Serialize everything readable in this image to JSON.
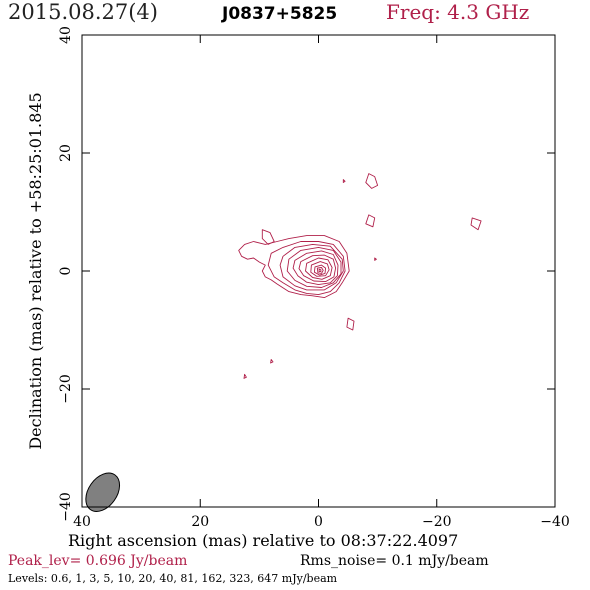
{
  "header": {
    "date": "2015.08.27(4)",
    "source": "J0837+5825",
    "freq": "Freq: 4.3 GHz"
  },
  "footer": {
    "peak": "Peak_lev=  0.696 Jy/beam",
    "rms": "Rms_noise=  0.1 mJy/beam",
    "levels": "Levels: 0.6,    1,    3,    5,   10,   20,   40,   81,  162,  323,  647 mJy/beam"
  },
  "colors": {
    "contour": "#b0204a",
    "beam": "#808080",
    "axis": "#000000"
  },
  "chart_data": {
    "type": "contour",
    "xlabel": "Right ascension (mas) relative to 08:37:22.4097",
    "ylabel": "Declination (mas) relative to +58:25:01.845",
    "xlim": [
      40,
      -40
    ],
    "ylim": [
      -40,
      40
    ],
    "x_ticks": [
      "40",
      "20",
      "0",
      "−20",
      "−40"
    ],
    "y_ticks": [
      "−40",
      "−20",
      "0",
      "20",
      "40"
    ],
    "peak_position": [
      0,
      0
    ],
    "levels_mjy": [
      0.6,
      1,
      3,
      5,
      10,
      20,
      40,
      81,
      162,
      323,
      647
    ],
    "beam": {
      "center": [
        36.5,
        -37.5
      ],
      "major_mas": 3.6,
      "minor_mas": 2.4,
      "pa_deg": 35
    },
    "contours": [
      {
        "level": 0.6,
        "points": [
          [
            13.5,
            3.5
          ],
          [
            12.5,
            4.5
          ],
          [
            11,
            5
          ],
          [
            9,
            4.5
          ],
          [
            7,
            5
          ],
          [
            5,
            5.5
          ],
          [
            2,
            6
          ],
          [
            -1,
            6
          ],
          [
            -3.5,
            5
          ],
          [
            -4.8,
            3
          ],
          [
            -5.2,
            0
          ],
          [
            -4,
            -2
          ],
          [
            -3,
            -3.5
          ],
          [
            -1,
            -4.5
          ],
          [
            1,
            -4.2
          ],
          [
            3,
            -4
          ],
          [
            5,
            -3.5
          ],
          [
            7,
            -2.2
          ],
          [
            8,
            -1.5
          ],
          [
            9,
            -1
          ],
          [
            9.5,
            0
          ],
          [
            9,
            1
          ],
          [
            10,
            1.5
          ],
          [
            11,
            2.2
          ],
          [
            12,
            2
          ],
          [
            13,
            2.5
          ]
        ]
      },
      {
        "level": 1,
        "points": [
          [
            8,
            3
          ],
          [
            6,
            4
          ],
          [
            3,
            5
          ],
          [
            0,
            5
          ],
          [
            -2.5,
            4.5
          ],
          [
            -4.2,
            2.5
          ],
          [
            -4.5,
            0
          ],
          [
            -3.5,
            -2
          ],
          [
            -2,
            -3.5
          ],
          [
            0,
            -4
          ],
          [
            2,
            -3.8
          ],
          [
            4,
            -3.2
          ],
          [
            6,
            -2
          ],
          [
            7.5,
            -1
          ],
          [
            8.5,
            1
          ]
        ]
      },
      {
        "level": 3,
        "points": [
          [
            6,
            2.5
          ],
          [
            4,
            4
          ],
          [
            1,
            4.5
          ],
          [
            -2,
            4.2
          ],
          [
            -4,
            2
          ],
          [
            -4.2,
            0
          ],
          [
            -3,
            -2
          ],
          [
            -1,
            -3.2
          ],
          [
            2,
            -3.2
          ],
          [
            4,
            -2.5
          ],
          [
            6,
            -1
          ],
          [
            6.5,
            1
          ]
        ]
      },
      {
        "level": 5,
        "points": [
          [
            5,
            2
          ],
          [
            3,
            3.5
          ],
          [
            0,
            4
          ],
          [
            -2.5,
            3.5
          ],
          [
            -3.8,
            1.5
          ],
          [
            -3.8,
            -0.5
          ],
          [
            -2.5,
            -2
          ],
          [
            -0.5,
            -2.8
          ],
          [
            2,
            -2.6
          ],
          [
            4,
            -1.6
          ],
          [
            5.3,
            0
          ]
        ]
      },
      {
        "level": 10,
        "points": [
          [
            4,
            1.8
          ],
          [
            2,
            3
          ],
          [
            -0.5,
            3.4
          ],
          [
            -2.5,
            2.8
          ],
          [
            -3.3,
            1
          ],
          [
            -3.2,
            -0.8
          ],
          [
            -2,
            -2
          ],
          [
            0,
            -2.3
          ],
          [
            2,
            -1.9
          ],
          [
            3.5,
            -0.8
          ],
          [
            4.3,
            0.5
          ]
        ]
      },
      {
        "level": 20,
        "points": [
          [
            3,
            1.6
          ],
          [
            1,
            2.6
          ],
          [
            -1,
            2.7
          ],
          [
            -2.5,
            2
          ],
          [
            -2.9,
            0.5
          ],
          [
            -2.6,
            -1
          ],
          [
            -1.2,
            -1.8
          ],
          [
            0.8,
            -1.7
          ],
          [
            2.5,
            -0.8
          ],
          [
            3.3,
            0.4
          ]
        ]
      },
      {
        "level": 40,
        "points": [
          [
            2,
            1.3
          ],
          [
            0,
            2.2
          ],
          [
            -1.6,
            1.9
          ],
          [
            -2.3,
            0.6
          ],
          [
            -2,
            -0.8
          ],
          [
            -0.6,
            -1.4
          ],
          [
            1,
            -1.1
          ],
          [
            2.2,
            0
          ]
        ]
      },
      {
        "level": 81,
        "points": [
          [
            1.2,
            1
          ],
          [
            -0.3,
            1.6
          ],
          [
            -1.5,
            1.2
          ],
          [
            -1.8,
            0.2
          ],
          [
            -1.2,
            -0.8
          ],
          [
            0.3,
            -0.9
          ],
          [
            1.3,
            -0.2
          ]
        ]
      },
      {
        "level": 162,
        "points": [
          [
            0.6,
            0.7
          ],
          [
            -0.5,
            1
          ],
          [
            -1.2,
            0.5
          ],
          [
            -1.1,
            -0.4
          ],
          [
            -0.2,
            -0.7
          ],
          [
            0.7,
            -0.2
          ]
        ]
      },
      {
        "level": 323,
        "points": [
          [
            0.2,
            0.5
          ],
          [
            -0.5,
            0.6
          ],
          [
            -0.8,
            0.1
          ],
          [
            -0.5,
            -0.4
          ],
          [
            0.1,
            -0.3
          ]
        ]
      },
      {
        "level": 647,
        "points": [
          [
            -0.1,
            0.3
          ],
          [
            -0.4,
            0.2
          ],
          [
            -0.4,
            -0.1
          ],
          [
            -0.1,
            -0.1
          ]
        ]
      },
      {
        "level": 0.6,
        "points": [
          [
            9.5,
            7
          ],
          [
            8.2,
            6.5
          ],
          [
            7.5,
            5
          ],
          [
            8.5,
            4.5
          ],
          [
            9.5,
            5.5
          ]
        ]
      },
      {
        "level": 0.6,
        "points": [
          [
            -8.5,
            16.5
          ],
          [
            -9.5,
            16
          ],
          [
            -10,
            14.5
          ],
          [
            -9,
            14
          ],
          [
            -8,
            15
          ]
        ]
      },
      {
        "level": 0.6,
        "points": [
          [
            -8.5,
            9.5
          ],
          [
            -9.5,
            9
          ],
          [
            -9.2,
            7.5
          ],
          [
            -8,
            8
          ]
        ]
      },
      {
        "level": 0.6,
        "points": [
          [
            -26,
            9
          ],
          [
            -27.5,
            8.5
          ],
          [
            -27,
            7
          ],
          [
            -25.8,
            7.8
          ]
        ]
      },
      {
        "level": 0.6,
        "points": [
          [
            -5,
            -8
          ],
          [
            -6,
            -8.5
          ],
          [
            -5.8,
            -10
          ],
          [
            -4.8,
            -9.5
          ]
        ]
      },
      {
        "level": 0.6,
        "points": [
          [
            -4.2,
            15.5
          ],
          [
            -4.5,
            15.2
          ],
          [
            -4.2,
            15
          ]
        ]
      },
      {
        "level": 0.6,
        "points": [
          [
            -9.5,
            2.2
          ],
          [
            -9.8,
            2
          ],
          [
            -9.5,
            1.8
          ]
        ]
      },
      {
        "level": 0.6,
        "points": [
          [
            8,
            -15
          ],
          [
            7.7,
            -15.4
          ],
          [
            8.1,
            -15.6
          ]
        ]
      },
      {
        "level": 0.6,
        "points": [
          [
            12.5,
            -17.5
          ],
          [
            12.2,
            -18
          ],
          [
            12.6,
            -18.2
          ]
        ]
      }
    ]
  }
}
